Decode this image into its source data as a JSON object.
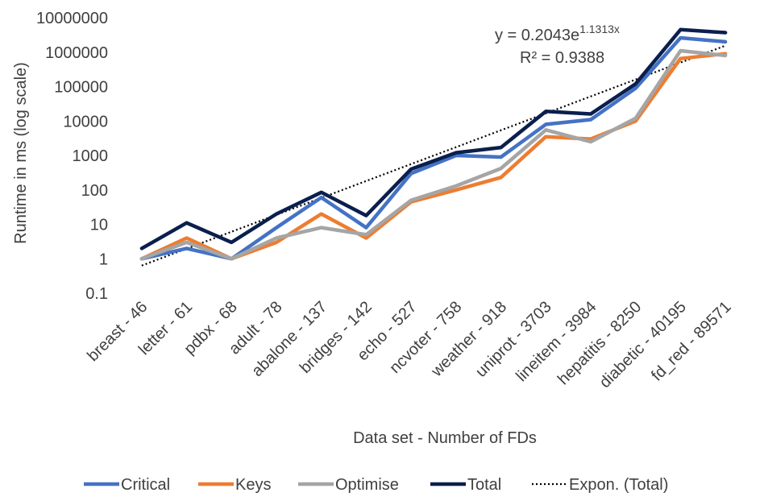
{
  "chart_data": {
    "type": "line",
    "y_scale": "log",
    "ylim": [
      0.1,
      10000000
    ],
    "y_ticks": [
      "0.1",
      "1",
      "10",
      "100",
      "1000",
      "10000",
      "100000",
      "1000000",
      "10000000"
    ],
    "xlabel": "Data set - Number of FDs",
    "ylabel": "Runtime in ms (log scale)",
    "grid": false,
    "legend_position": "bottom",
    "categories": [
      "breast - 46",
      "letter - 61",
      "pdbx - 68",
      "adult - 78",
      "abalone - 137",
      "bridges - 142",
      "echo - 527",
      "ncvoter - 758",
      "weather - 918",
      "uniprot - 3703",
      "lineitem - 3984",
      "hepatitis - 8250",
      "diabetic - 40195",
      "fd_red - 89571"
    ],
    "series": [
      {
        "name": "Critical",
        "color": "#4472C4",
        "values": [
          1,
          2,
          1,
          8,
          60,
          8,
          300,
          1000,
          900,
          8000,
          11000,
          90000,
          2600000,
          2000000
        ]
      },
      {
        "name": "Keys",
        "color": "#ED7D31",
        "values": [
          1,
          4,
          1,
          3,
          20,
          4,
          45,
          100,
          230,
          3500,
          3000,
          10000,
          650000,
          900000
        ]
      },
      {
        "name": "Optimise",
        "color": "#A5A5A5",
        "values": [
          1,
          3,
          1,
          4,
          8,
          5,
          50,
          130,
          420,
          5500,
          2500,
          12000,
          1100000,
          800000
        ]
      },
      {
        "name": "Total",
        "color": "#0B1F4D",
        "values": [
          2,
          11,
          3,
          20,
          85,
          18,
          400,
          1200,
          1700,
          19000,
          16000,
          120000,
          4500000,
          3700000
        ]
      }
    ],
    "trendline": {
      "name": "Expon. (Total)",
      "type": "exponential",
      "equation_prefix": "y = 0.2043e",
      "equation_exponent": "1.1313x",
      "r_squared": "R² = 0.9388",
      "a": 0.2043,
      "b": 1.1313,
      "color": "#000000"
    }
  }
}
